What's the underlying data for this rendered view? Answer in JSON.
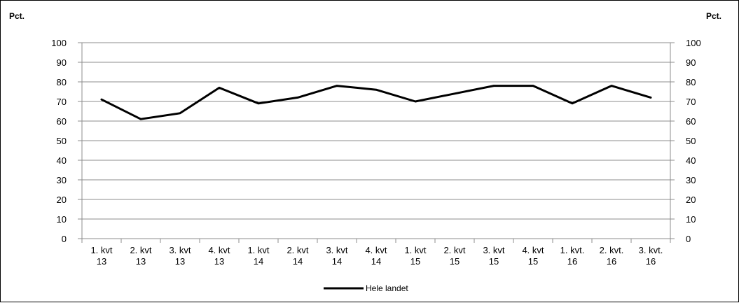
{
  "chart_data": {
    "type": "line",
    "title": "",
    "ylabel_left": "Pct.",
    "ylabel_right": "Pct.",
    "ylim": [
      0,
      100
    ],
    "yticks": [
      0,
      10,
      20,
      30,
      40,
      50,
      60,
      70,
      80,
      90,
      100
    ],
    "grid": true,
    "legend_position": "bottom",
    "categories": [
      [
        "1. kvt",
        "13"
      ],
      [
        "2. kvt",
        "13"
      ],
      [
        "3. kvt",
        "13"
      ],
      [
        "4. kvt",
        "13"
      ],
      [
        "1. kvt",
        "14"
      ],
      [
        "2. kvt",
        "14"
      ],
      [
        "3. kvt",
        "14"
      ],
      [
        "4. kvt",
        "14"
      ],
      [
        "1. kvt",
        "15"
      ],
      [
        "2. kvt",
        "15"
      ],
      [
        "3. kvt",
        "15"
      ],
      [
        "4. kvt",
        "15"
      ],
      [
        "1. kvt.",
        "16"
      ],
      [
        "2. kvt.",
        "16"
      ],
      [
        "3. kvt.",
        "16"
      ]
    ],
    "series": [
      {
        "name": "Hele landet",
        "color": "#000000",
        "values": [
          71,
          61,
          64,
          77,
          69,
          72,
          78,
          76,
          70,
          74,
          78,
          78,
          69,
          78,
          72
        ]
      }
    ]
  }
}
